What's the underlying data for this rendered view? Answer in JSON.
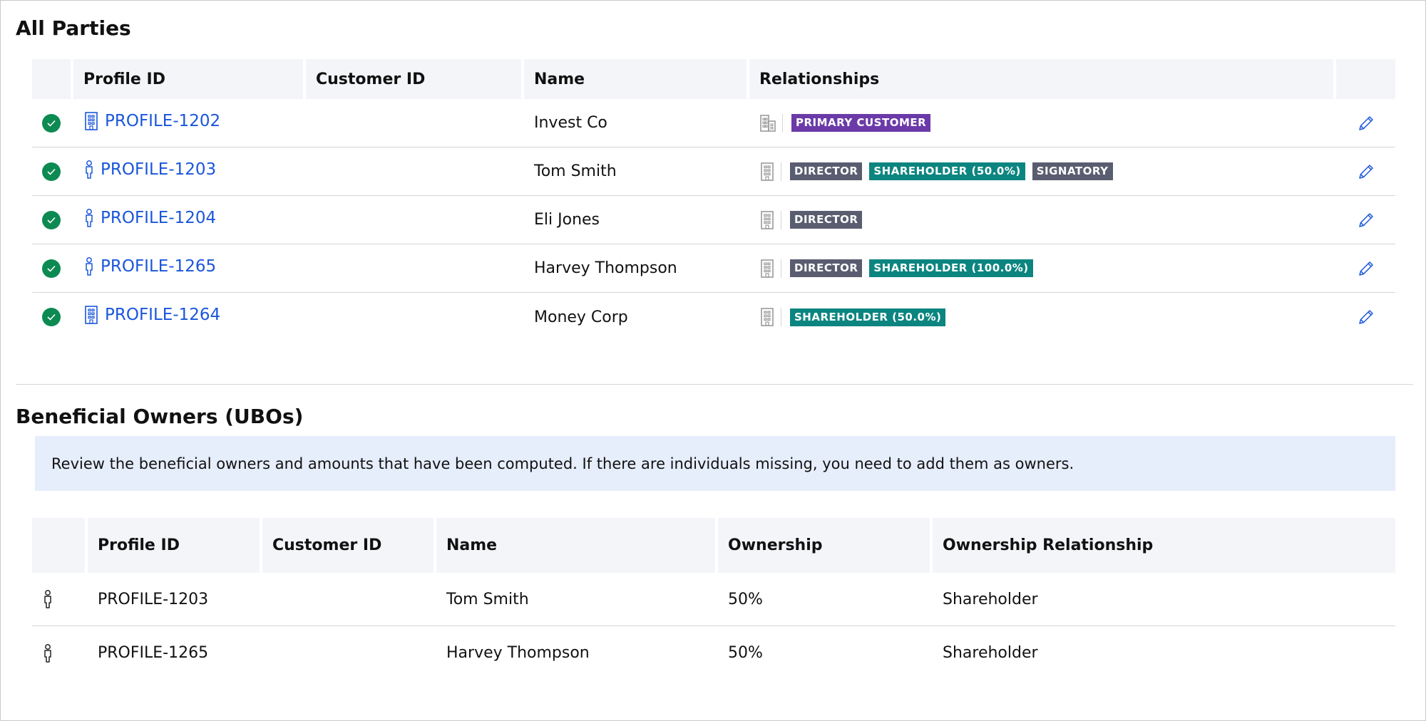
{
  "all_parties": {
    "title": "All Parties",
    "columns": [
      "",
      "Profile ID",
      "Customer ID",
      "Name",
      "Relationships",
      ""
    ],
    "rows": [
      {
        "profile_id": "PROFILE-1202",
        "profile_icon": "building-icon",
        "customer_id": "",
        "name": "Invest Co",
        "relationship_icon": "company-icon",
        "badges": [
          {
            "label": "PRIMARY CUSTOMER",
            "color": "#6b3aa8"
          }
        ]
      },
      {
        "profile_id": "PROFILE-1203",
        "profile_icon": "person-icon",
        "customer_id": "",
        "name": "Tom Smith",
        "relationship_icon": "building-icon",
        "badges": [
          {
            "label": "DIRECTOR",
            "color": "#5a5c70"
          },
          {
            "label": "SHAREHOLDER (50.0%)",
            "color": "#0c8580"
          },
          {
            "label": "SIGNATORY",
            "color": "#5a5c70"
          }
        ]
      },
      {
        "profile_id": "PROFILE-1204",
        "profile_icon": "person-icon",
        "customer_id": "",
        "name": "Eli Jones",
        "relationship_icon": "building-icon",
        "badges": [
          {
            "label": "DIRECTOR",
            "color": "#5a5c70"
          }
        ]
      },
      {
        "profile_id": "PROFILE-1265",
        "profile_icon": "person-icon",
        "customer_id": "",
        "name": "Harvey Thompson",
        "relationship_icon": "building-icon",
        "badges": [
          {
            "label": "DIRECTOR",
            "color": "#5a5c70"
          },
          {
            "label": "SHAREHOLDER (100.0%)",
            "color": "#0c8580"
          }
        ]
      },
      {
        "profile_id": "PROFILE-1264",
        "profile_icon": "building-icon",
        "customer_id": "",
        "name": "Money Corp",
        "relationship_icon": "building-icon",
        "badges": [
          {
            "label": "SHAREHOLDER (50.0%)",
            "color": "#0c8580"
          }
        ]
      }
    ]
  },
  "ubo": {
    "title": "Beneficial Owners (UBOs)",
    "info": "Review the beneficial owners and amounts that have been computed. If there are individuals missing, you need to add them as owners.",
    "columns": [
      "",
      "Profile ID",
      "Customer ID",
      "Name",
      "Ownership",
      "Ownership Relationship"
    ],
    "rows": [
      {
        "profile_id": "PROFILE-1203",
        "customer_id": "",
        "name": "Tom Smith",
        "ownership": "50%",
        "relationship": "Shareholder"
      },
      {
        "profile_id": "PROFILE-1265",
        "customer_id": "",
        "name": "Harvey Thompson",
        "ownership": "50%",
        "relationship": "Shareholder"
      }
    ]
  },
  "colors": {
    "link": "#1a56db",
    "status_ok": "#0c8a52",
    "info_bg": "#e6edfb",
    "header_bg": "#f3f5f9"
  }
}
